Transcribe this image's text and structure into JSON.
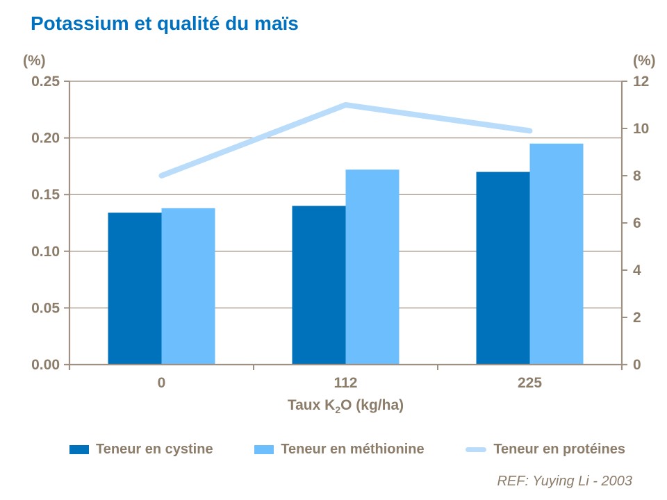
{
  "page": {
    "title": "Potassium et qualité du maïs",
    "ref": "REF: Yuying Li - 2003"
  },
  "colors": {
    "title_blue": "#0070C0",
    "axis_text_brown": "#8C7C6A",
    "grid_line": "#A79A8B",
    "axis_line": "#9E9083",
    "cystine_bar": "#0072BC",
    "methionine_bar": "#6CBEFC",
    "proteines_line": "#B9DCFB"
  },
  "chart_data": {
    "type": "bar",
    "subtype": "grouped bars with overlay line",
    "categories": [
      "0",
      "112",
      "225"
    ],
    "x_axis": {
      "title_prefix": "Taux K",
      "title_sub": "2",
      "title_suffix": "O (kg/ha)"
    },
    "left_axis": {
      "unit": "(%)",
      "min": 0,
      "max": 0.25,
      "ticks": [
        "0.00",
        "0.05",
        "0.10",
        "0.15",
        "0.20",
        "0.25"
      ]
    },
    "right_axis": {
      "unit": "(%)",
      "min": 0,
      "max": 12,
      "ticks": [
        "0",
        "2",
        "4",
        "6",
        "8",
        "10",
        "12"
      ]
    },
    "series": [
      {
        "name": "Teneur en cystine",
        "type": "bar",
        "axis": "left",
        "color": "#0072BC",
        "values": [
          0.134,
          0.14,
          0.17
        ]
      },
      {
        "name": "Teneur en méthionine",
        "type": "bar",
        "axis": "left",
        "color": "#6CBEFC",
        "values": [
          0.138,
          0.172,
          0.195
        ]
      },
      {
        "name": "Teneur en protéines",
        "type": "line",
        "axis": "right",
        "color": "#B9DCFB",
        "values": [
          8.0,
          11.0,
          9.9
        ]
      }
    ],
    "grid": true,
    "legend_position": "bottom"
  }
}
